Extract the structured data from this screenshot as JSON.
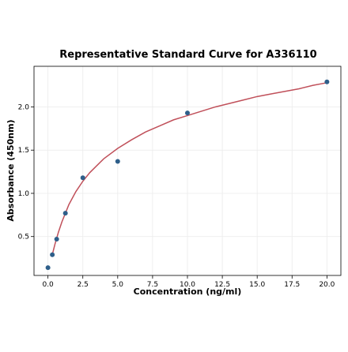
{
  "chart_data": {
    "type": "scatter",
    "title": "Representative Standard Curve for A336110",
    "xlabel": "Concentration (ng/ml)",
    "ylabel": "Absorbance (450nm)",
    "xlim": [
      -1.0,
      21.0
    ],
    "ylim": [
      0.05,
      2.47
    ],
    "grid": true,
    "legend": "none",
    "xticks": [
      0.0,
      2.5,
      5.0,
      7.5,
      10.0,
      12.5,
      15.0,
      17.5,
      20.0
    ],
    "xtick_labels": [
      "0.0",
      "2.5",
      "5.0",
      "7.5",
      "10.0",
      "12.5",
      "15.0",
      "17.5",
      "20.0"
    ],
    "yticks": [
      0.5,
      1.0,
      1.5,
      2.0
    ],
    "ytick_labels": [
      "0.5",
      "1.0",
      "1.5",
      "2.0"
    ],
    "series": [
      {
        "kind": "points",
        "color": "#2e5f8a",
        "x": [
          0.0,
          0.312,
          0.625,
          1.25,
          2.5,
          5.0,
          10.0,
          20.0
        ],
        "y": [
          0.14,
          0.29,
          0.47,
          0.77,
          1.18,
          1.37,
          1.93,
          2.29
        ]
      },
      {
        "kind": "fit-curve",
        "color": "#c0505a",
        "x": [
          0.31,
          0.5,
          0.75,
          1.0,
          1.5,
          2.0,
          2.5,
          3.0,
          4.0,
          5.0,
          6.0,
          7.0,
          8.0,
          9.0,
          10.0,
          11.0,
          12.0,
          13.0,
          14.0,
          15.0,
          16.0,
          17.0,
          18.0,
          19.0,
          20.0
        ],
        "y": [
          0.29,
          0.41,
          0.55,
          0.67,
          0.87,
          1.02,
          1.14,
          1.24,
          1.4,
          1.52,
          1.62,
          1.71,
          1.78,
          1.85,
          1.9,
          1.95,
          2.0,
          2.04,
          2.08,
          2.12,
          2.15,
          2.18,
          2.21,
          2.25,
          2.28
        ]
      }
    ]
  }
}
